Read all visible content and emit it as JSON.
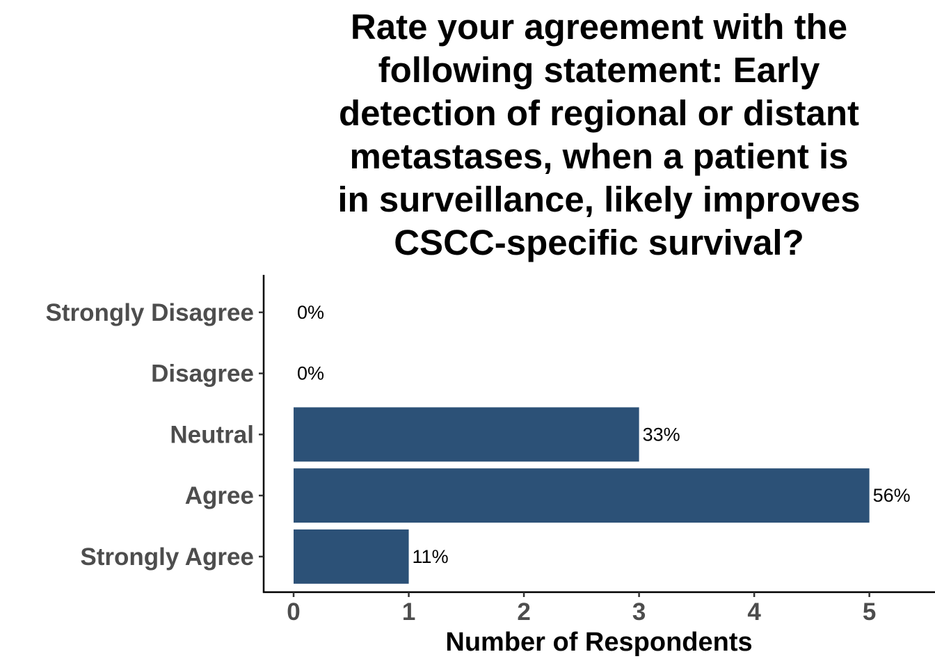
{
  "chart_data": {
    "type": "bar",
    "orientation": "horizontal",
    "title_lines": [
      "Rate your agreement with the",
      "following statement: Early",
      "detection of regional or distant",
      "metastases, when a patient is",
      "in surveillance, likely improves",
      "CSCC-specific survival?"
    ],
    "xlabel": "Number of Respondents",
    "ylabel": "",
    "categories": [
      "Strongly Disagree",
      "Disagree",
      "Neutral",
      "Agree",
      "Strongly Agree"
    ],
    "values": [
      0,
      0,
      3,
      5,
      1
    ],
    "data_labels": [
      "0%",
      "0%",
      "33%",
      "56%",
      "11%"
    ],
    "xticks": [
      "0",
      "1",
      "2",
      "3",
      "4",
      "5"
    ],
    "xlim": [
      -0.26,
      5.57
    ],
    "bar_color": "#2c5177",
    "grid": false,
    "legend": "none"
  }
}
